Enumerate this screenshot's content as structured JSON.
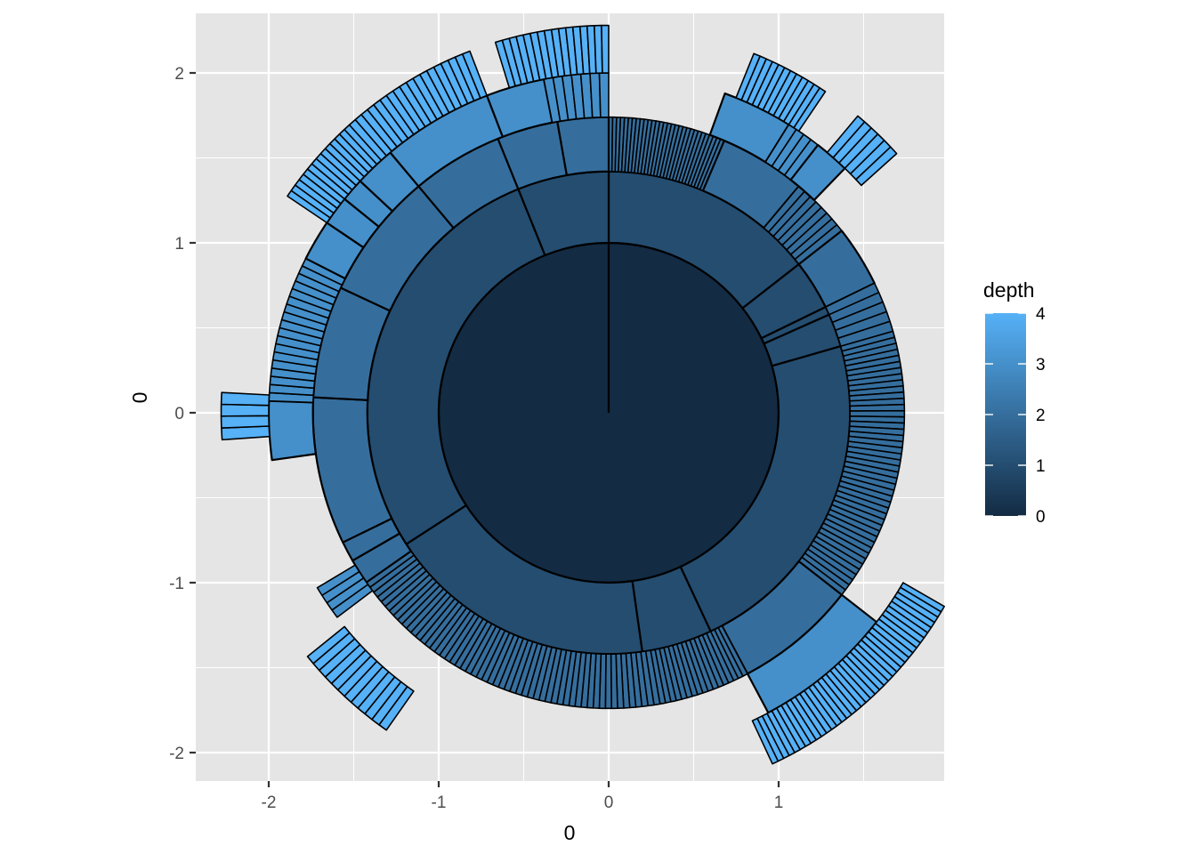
{
  "chart_data": {
    "type": "sunburst",
    "xlabel": "0",
    "ylabel": "0",
    "xlim": [
      -2.42,
      1.96
    ],
    "ylim": [
      -2.2,
      2.3
    ],
    "x_ticks": [
      -2,
      -1,
      0,
      1
    ],
    "y_ticks": [
      -2,
      -1,
      0,
      1,
      2
    ],
    "grid": true,
    "background": "#e5e5e5",
    "grid_color": "#ffffff",
    "legend": {
      "title": "depth",
      "position": "right",
      "range": [
        0,
        4
      ],
      "breaks": [
        0,
        1,
        2,
        3,
        4
      ],
      "color_low": "#132b43",
      "color_high": "#56b1f7"
    },
    "rings": [
      {
        "depth": 0,
        "inner": 0,
        "outer": 1.0
      },
      {
        "depth": 1,
        "inner": 1.0,
        "outer": 1.42
      },
      {
        "depth": 2,
        "inner": 1.42,
        "outer": 1.74
      },
      {
        "depth": 3,
        "inner": 1.74,
        "outer": 2.0
      },
      {
        "depth": 4,
        "inner": 2.0,
        "outer": 2.28
      }
    ],
    "sectors": [
      {
        "depth": 0,
        "start": 0,
        "end": 360
      },
      {
        "depth": 1,
        "start": 0,
        "end": 52
      },
      {
        "depth": 1,
        "start": 52,
        "end": 64
      },
      {
        "depth": 1,
        "start": 64,
        "end": 66
      },
      {
        "depth": 1,
        "start": 66,
        "end": 74
      },
      {
        "depth": 1,
        "start": 74,
        "end": 155
      },
      {
        "depth": 1,
        "start": 155,
        "end": 172
      },
      {
        "depth": 1,
        "start": 172,
        "end": 237
      },
      {
        "depth": 1,
        "start": 237,
        "end": 338
      },
      {
        "depth": 1,
        "start": 338,
        "end": 360
      },
      {
        "depth": 2,
        "start": 0,
        "end": 23,
        "split": 30
      },
      {
        "depth": 2,
        "start": 23,
        "end": 40
      },
      {
        "depth": 2,
        "start": 40,
        "end": 52,
        "split": 8
      },
      {
        "depth": 2,
        "start": 52,
        "end": 64
      },
      {
        "depth": 2,
        "start": 64,
        "end": 74,
        "split": 5
      },
      {
        "depth": 2,
        "start": 74,
        "end": 128,
        "split": 45
      },
      {
        "depth": 2,
        "start": 128,
        "end": 152
      },
      {
        "depth": 2,
        "start": 152,
        "end": 155,
        "split": 3
      },
      {
        "depth": 2,
        "start": 155,
        "end": 170,
        "split": 14
      },
      {
        "depth": 2,
        "start": 170,
        "end": 235,
        "split": 55
      },
      {
        "depth": 2,
        "start": 235,
        "end": 240
      },
      {
        "depth": 2,
        "start": 240,
        "end": 244
      },
      {
        "depth": 2,
        "start": 244,
        "end": 273
      },
      {
        "depth": 2,
        "start": 273,
        "end": 295
      },
      {
        "depth": 2,
        "start": 295,
        "end": 320
      },
      {
        "depth": 2,
        "start": 320,
        "end": 338
      },
      {
        "depth": 2,
        "start": 338,
        "end": 350
      },
      {
        "depth": 2,
        "start": 350,
        "end": 360
      },
      {
        "depth": 3,
        "start": 20,
        "end": 32
      },
      {
        "depth": 3,
        "start": 32,
        "end": 38,
        "split": 4
      },
      {
        "depth": 3,
        "start": 38,
        "end": 44
      },
      {
        "depth": 3,
        "start": 128,
        "end": 152
      },
      {
        "depth": 3,
        "start": 233,
        "end": 239,
        "split": 4
      },
      {
        "depth": 3,
        "start": 262,
        "end": 272
      },
      {
        "depth": 3,
        "start": 272,
        "end": 297,
        "split": 18
      },
      {
        "depth": 3,
        "start": 297,
        "end": 304
      },
      {
        "depth": 3,
        "start": 304,
        "end": 309
      },
      {
        "depth": 3,
        "start": 309,
        "end": 313
      },
      {
        "depth": 3,
        "start": 313,
        "end": 320
      },
      {
        "depth": 3,
        "start": 320,
        "end": 339
      },
      {
        "depth": 3,
        "start": 339,
        "end": 349
      },
      {
        "depth": 3,
        "start": 349,
        "end": 360,
        "split": 7
      },
      {
        "depth": 4,
        "start": 22,
        "end": 34,
        "split": 12
      },
      {
        "depth": 4,
        "start": 40,
        "end": 48,
        "split": 6
      },
      {
        "depth": 4,
        "start": 120,
        "end": 155,
        "split": 38
      },
      {
        "depth": 4,
        "start": 215,
        "end": 231,
        "split": 12
      },
      {
        "depth": 4,
        "start": 266,
        "end": 273,
        "split": 4
      },
      {
        "depth": 4,
        "start": 304,
        "end": 318,
        "split": 14
      },
      {
        "depth": 4,
        "start": 318,
        "end": 339,
        "split": 18
      },
      {
        "depth": 4,
        "start": 343,
        "end": 360,
        "split": 16
      }
    ]
  }
}
